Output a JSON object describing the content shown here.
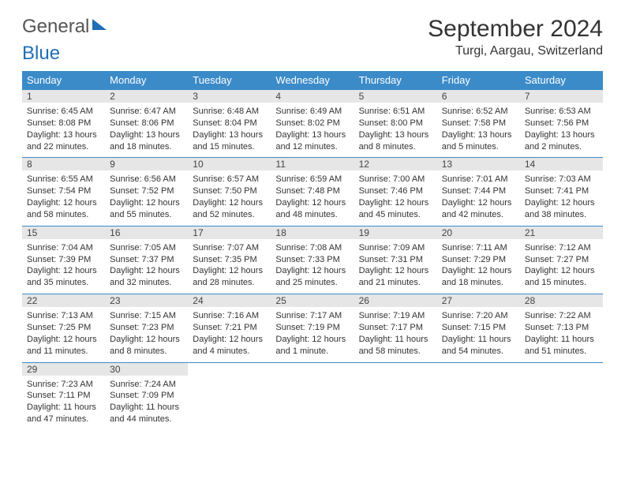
{
  "logo": {
    "text1": "General",
    "text2": "Blue"
  },
  "title": "September 2024",
  "location": "Turgi, Aargau, Switzerland",
  "weekdays": [
    "Sunday",
    "Monday",
    "Tuesday",
    "Wednesday",
    "Thursday",
    "Friday",
    "Saturday"
  ],
  "colors": {
    "header_bg": "#3b8bc9",
    "daynum_bg": "#e6e6e6",
    "border": "#3b8bc9"
  },
  "weeks": [
    [
      {
        "n": "1",
        "sr": "6:45 AM",
        "ss": "8:08 PM",
        "dl": "13 hours and 22 minutes."
      },
      {
        "n": "2",
        "sr": "6:47 AM",
        "ss": "8:06 PM",
        "dl": "13 hours and 18 minutes."
      },
      {
        "n": "3",
        "sr": "6:48 AM",
        "ss": "8:04 PM",
        "dl": "13 hours and 15 minutes."
      },
      {
        "n": "4",
        "sr": "6:49 AM",
        "ss": "8:02 PM",
        "dl": "13 hours and 12 minutes."
      },
      {
        "n": "5",
        "sr": "6:51 AM",
        "ss": "8:00 PM",
        "dl": "13 hours and 8 minutes."
      },
      {
        "n": "6",
        "sr": "6:52 AM",
        "ss": "7:58 PM",
        "dl": "13 hours and 5 minutes."
      },
      {
        "n": "7",
        "sr": "6:53 AM",
        "ss": "7:56 PM",
        "dl": "13 hours and 2 minutes."
      }
    ],
    [
      {
        "n": "8",
        "sr": "6:55 AM",
        "ss": "7:54 PM",
        "dl": "12 hours and 58 minutes."
      },
      {
        "n": "9",
        "sr": "6:56 AM",
        "ss": "7:52 PM",
        "dl": "12 hours and 55 minutes."
      },
      {
        "n": "10",
        "sr": "6:57 AM",
        "ss": "7:50 PM",
        "dl": "12 hours and 52 minutes."
      },
      {
        "n": "11",
        "sr": "6:59 AM",
        "ss": "7:48 PM",
        "dl": "12 hours and 48 minutes."
      },
      {
        "n": "12",
        "sr": "7:00 AM",
        "ss": "7:46 PM",
        "dl": "12 hours and 45 minutes."
      },
      {
        "n": "13",
        "sr": "7:01 AM",
        "ss": "7:44 PM",
        "dl": "12 hours and 42 minutes."
      },
      {
        "n": "14",
        "sr": "7:03 AM",
        "ss": "7:41 PM",
        "dl": "12 hours and 38 minutes."
      }
    ],
    [
      {
        "n": "15",
        "sr": "7:04 AM",
        "ss": "7:39 PM",
        "dl": "12 hours and 35 minutes."
      },
      {
        "n": "16",
        "sr": "7:05 AM",
        "ss": "7:37 PM",
        "dl": "12 hours and 32 minutes."
      },
      {
        "n": "17",
        "sr": "7:07 AM",
        "ss": "7:35 PM",
        "dl": "12 hours and 28 minutes."
      },
      {
        "n": "18",
        "sr": "7:08 AM",
        "ss": "7:33 PM",
        "dl": "12 hours and 25 minutes."
      },
      {
        "n": "19",
        "sr": "7:09 AM",
        "ss": "7:31 PM",
        "dl": "12 hours and 21 minutes."
      },
      {
        "n": "20",
        "sr": "7:11 AM",
        "ss": "7:29 PM",
        "dl": "12 hours and 18 minutes."
      },
      {
        "n": "21",
        "sr": "7:12 AM",
        "ss": "7:27 PM",
        "dl": "12 hours and 15 minutes."
      }
    ],
    [
      {
        "n": "22",
        "sr": "7:13 AM",
        "ss": "7:25 PM",
        "dl": "12 hours and 11 minutes."
      },
      {
        "n": "23",
        "sr": "7:15 AM",
        "ss": "7:23 PM",
        "dl": "12 hours and 8 minutes."
      },
      {
        "n": "24",
        "sr": "7:16 AM",
        "ss": "7:21 PM",
        "dl": "12 hours and 4 minutes."
      },
      {
        "n": "25",
        "sr": "7:17 AM",
        "ss": "7:19 PM",
        "dl": "12 hours and 1 minute."
      },
      {
        "n": "26",
        "sr": "7:19 AM",
        "ss": "7:17 PM",
        "dl": "11 hours and 58 minutes."
      },
      {
        "n": "27",
        "sr": "7:20 AM",
        "ss": "7:15 PM",
        "dl": "11 hours and 54 minutes."
      },
      {
        "n": "28",
        "sr": "7:22 AM",
        "ss": "7:13 PM",
        "dl": "11 hours and 51 minutes."
      }
    ],
    [
      {
        "n": "29",
        "sr": "7:23 AM",
        "ss": "7:11 PM",
        "dl": "11 hours and 47 minutes."
      },
      {
        "n": "30",
        "sr": "7:24 AM",
        "ss": "7:09 PM",
        "dl": "11 hours and 44 minutes."
      },
      null,
      null,
      null,
      null,
      null
    ]
  ],
  "labels": {
    "sunrise": "Sunrise:",
    "sunset": "Sunset:",
    "daylight": "Daylight:"
  }
}
